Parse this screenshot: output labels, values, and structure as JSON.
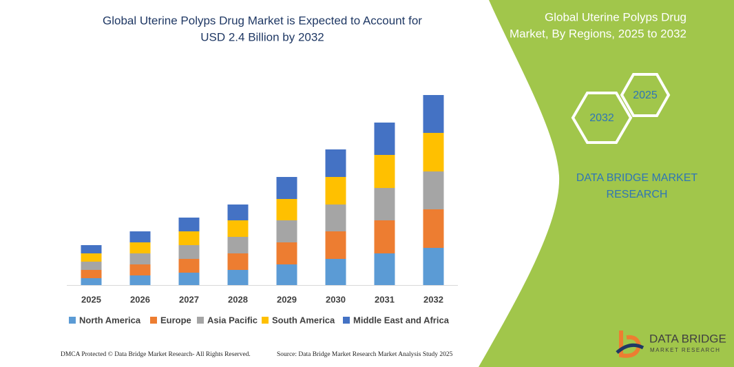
{
  "chart_data": {
    "type": "stacked_bar",
    "title": [
      "Global Uterine Polyps Drug Market is Expected to Account for",
      "USD 2.4 Billion by 2032"
    ],
    "categories": [
      "2025",
      "2026",
      "2027",
      "2028",
      "2029",
      "2030",
      "2031",
      "2032"
    ],
    "series": [
      {
        "name": "North America",
        "color": "#5b9bd5",
        "values": [
          10,
          14,
          18,
          22,
          30,
          38,
          46,
          54
        ]
      },
      {
        "name": "Europe",
        "color": "#ed7d31",
        "values": [
          12,
          16,
          20,
          24,
          32,
          40,
          48,
          56
        ]
      },
      {
        "name": "Asia Pacific",
        "color": "#a5a5a5",
        "values": [
          12,
          16,
          20,
          24,
          32,
          39,
          47,
          55
        ]
      },
      {
        "name": "South America",
        "color": "#ffc000",
        "values": [
          12,
          16,
          20,
          24,
          31,
          40,
          48,
          56
        ]
      },
      {
        "name": "Middle East and Africa",
        "color": "#4472c4",
        "values": [
          12,
          16,
          20,
          23,
          32,
          40,
          47,
          55
        ]
      }
    ]
  },
  "panel": {
    "title": [
      "Global Uterine Polyps Drug",
      "Market, By Regions, 2025 to 2032"
    ],
    "hexagons": [
      "2025",
      "2032"
    ],
    "brand": [
      "DATA BRIDGE MARKET",
      "RESEARCH"
    ]
  },
  "logo": {
    "name": "DATA BRIDGE",
    "tagline": "MARKET RESEARCH"
  },
  "footer": {
    "copyright": "DMCA Protected © Data Bridge Market Research- All Rights Reserved.",
    "source": "Source: Data Bridge Market Research Market Analysis Study 2025"
  }
}
